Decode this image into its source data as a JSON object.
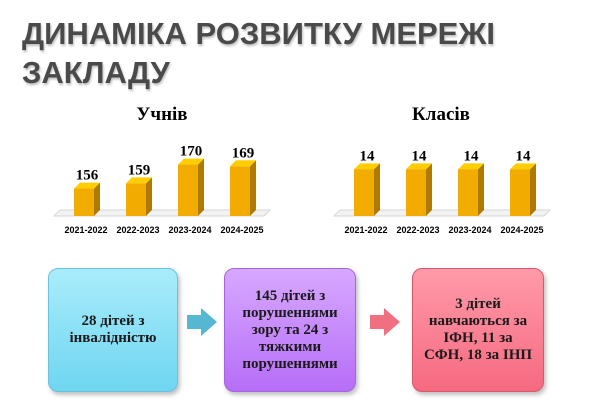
{
  "title": "ДИНАМІКА РОЗВИТКУ МЕРЕЖІ ЗАКЛАДУ",
  "chart_data": [
    {
      "type": "bar",
      "title": "Учнів",
      "categories": [
        "2021-2022",
        "2022-2023",
        "2023-2024",
        "2024-2025"
      ],
      "values": [
        156,
        159,
        170,
        169
      ],
      "ylim": [
        140,
        175
      ],
      "grid": false,
      "color": "#f2ab00"
    },
    {
      "type": "bar",
      "title": "Класів",
      "categories": [
        "2021-2022",
        "2022-2023",
        "2023-2024",
        "2024-2025"
      ],
      "values": [
        14,
        14,
        14,
        14
      ],
      "ylim": [
        0,
        18
      ],
      "grid": false,
      "color": "#f2ab00"
    }
  ],
  "boxes": [
    {
      "text": "28 дітей з інвалідністю",
      "color": "#6fd6f1"
    },
    {
      "text": "145 дітей з порушеннями зору та 24 з тяжкими порушеннями",
      "color": "#b66ef7"
    },
    {
      "text": "3 дітей навчаються за ІФН, 11 за СФН,  18 за ІНП",
      "color": "#f66a80"
    }
  ],
  "arrows": [
    {
      "color": "#55b7d2"
    },
    {
      "color": "#f0707f"
    }
  ]
}
